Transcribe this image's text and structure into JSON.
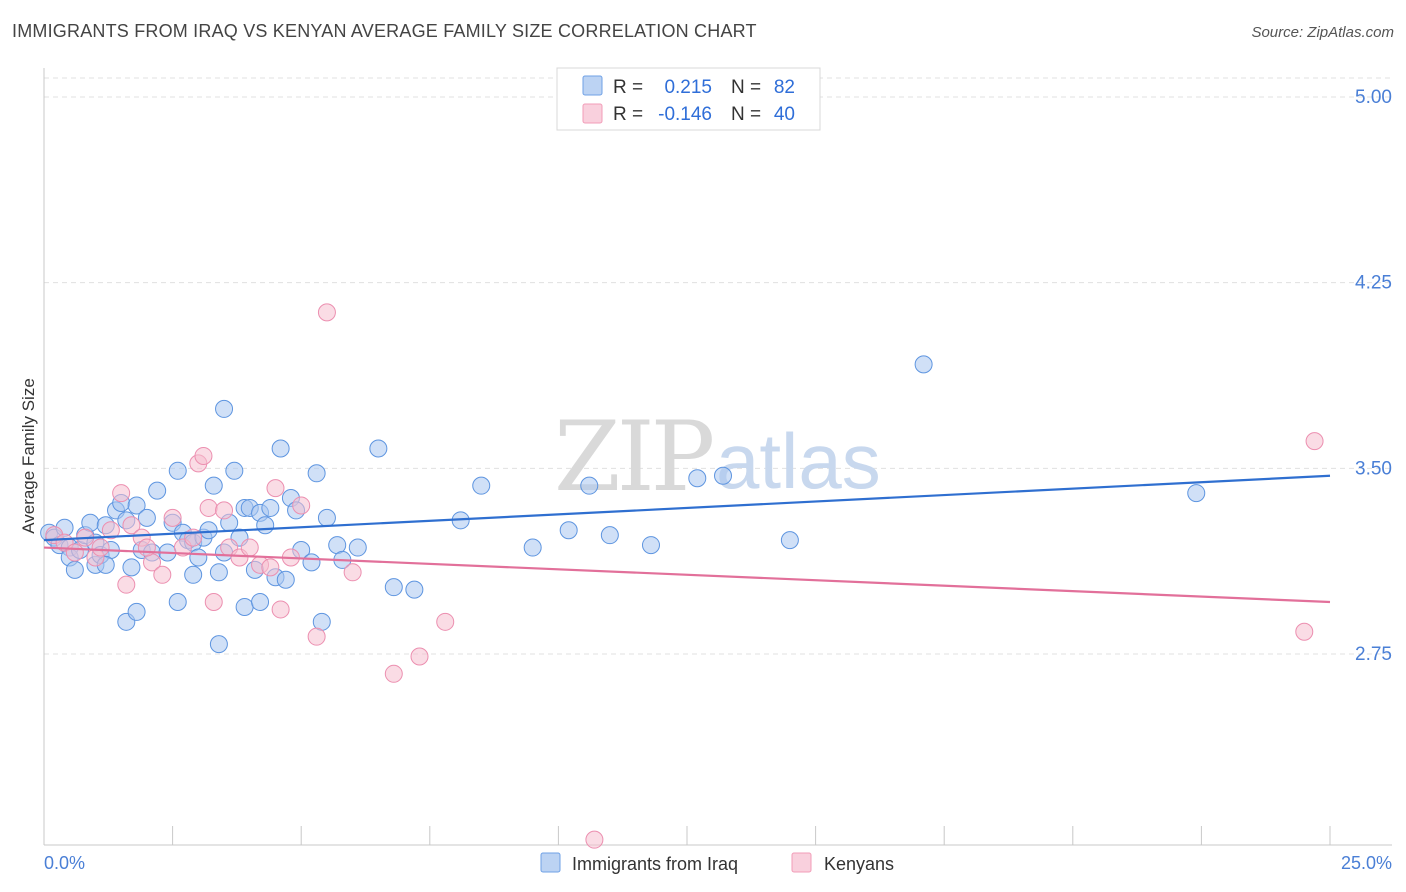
{
  "title": "IMMIGRANTS FROM IRAQ VS KENYAN AVERAGE FAMILY SIZE CORRELATION CHART",
  "source": "Source: ZipAtlas.com",
  "watermark": {
    "zip": "ZIP",
    "atlas": "atlas"
  },
  "legend": {
    "rows": [
      {
        "r_label": "R =",
        "r_value": "0.215",
        "n_label": "N =",
        "n_value": "82",
        "color": "#6fa1e6"
      },
      {
        "r_label": "R =",
        "r_value": "-0.146",
        "n_label": "N =",
        "n_value": "40",
        "color": "#f29cb8"
      }
    ]
  },
  "colors": {
    "blue_fill": "#a9c6f0",
    "blue_stroke": "#5e95e0",
    "blue_line": "#2f6fd0",
    "pink_fill": "#f6bfd0",
    "pink_stroke": "#ec8fb0",
    "pink_line": "#e2709a",
    "axis_text": "#4a7fd6",
    "grid": "#e0e0e0"
  },
  "chart_data": {
    "type": "scatter",
    "title": "IMMIGRANTS FROM IRAQ VS KENYAN AVERAGE FAMILY SIZE CORRELATION CHART",
    "xlabel": "",
    "ylabel": "Average Family Size",
    "xlim": [
      0,
      25
    ],
    "ylim": [
      2.0,
      5.1
    ],
    "x_tick_labels": [
      "0.0%",
      "25.0%"
    ],
    "y_ticks": [
      2.75,
      3.5,
      4.25,
      5.0
    ],
    "y_tick_labels": [
      "2.75",
      "3.50",
      "4.25",
      "5.00"
    ],
    "grid": true,
    "series": [
      {
        "name": "Immigrants from Iraq",
        "color": "#6fa1e6",
        "trend": {
          "x": [
            0,
            25
          ],
          "y": [
            3.21,
            3.47
          ]
        },
        "points": [
          [
            0.1,
            3.24
          ],
          [
            0.2,
            3.22
          ],
          [
            0.3,
            3.19
          ],
          [
            0.4,
            3.26
          ],
          [
            0.5,
            3.18
          ],
          [
            0.5,
            3.14
          ],
          [
            0.6,
            3.09
          ],
          [
            0.7,
            3.17
          ],
          [
            0.8,
            3.23
          ],
          [
            0.9,
            3.28
          ],
          [
            1.0,
            3.2
          ],
          [
            1.0,
            3.11
          ],
          [
            1.1,
            3.15
          ],
          [
            1.2,
            3.27
          ],
          [
            1.3,
            3.17
          ],
          [
            1.4,
            3.33
          ],
          [
            1.5,
            3.36
          ],
          [
            1.6,
            3.29
          ],
          [
            1.7,
            3.1
          ],
          [
            1.8,
            3.35
          ],
          [
            1.9,
            3.17
          ],
          [
            2.0,
            3.3
          ],
          [
            2.1,
            3.16
          ],
          [
            2.2,
            3.41
          ],
          [
            2.4,
            3.16
          ],
          [
            2.5,
            3.28
          ],
          [
            2.6,
            3.49
          ],
          [
            2.7,
            3.24
          ],
          [
            2.8,
            3.21
          ],
          [
            2.9,
            3.2
          ],
          [
            3.0,
            3.14
          ],
          [
            3.1,
            3.22
          ],
          [
            3.2,
            3.25
          ],
          [
            3.3,
            3.43
          ],
          [
            3.4,
            3.08
          ],
          [
            3.5,
            3.16
          ],
          [
            3.6,
            3.28
          ],
          [
            3.7,
            3.49
          ],
          [
            3.8,
            3.22
          ],
          [
            3.9,
            3.34
          ],
          [
            4.0,
            3.34
          ],
          [
            4.1,
            3.09
          ],
          [
            4.2,
            3.32
          ],
          [
            4.3,
            3.27
          ],
          [
            4.4,
            3.34
          ],
          [
            4.5,
            3.06
          ],
          [
            4.6,
            3.58
          ],
          [
            4.7,
            3.05
          ],
          [
            4.8,
            3.38
          ],
          [
            4.9,
            3.33
          ],
          [
            5.0,
            3.17
          ],
          [
            5.2,
            3.12
          ],
          [
            5.3,
            3.48
          ],
          [
            5.5,
            3.3
          ],
          [
            5.7,
            3.19
          ],
          [
            5.8,
            3.13
          ],
          [
            6.1,
            3.18
          ],
          [
            6.5,
            3.58
          ],
          [
            6.8,
            3.02
          ],
          [
            7.2,
            3.01
          ],
          [
            8.1,
            3.29
          ],
          [
            8.5,
            3.43
          ],
          [
            9.5,
            3.18
          ],
          [
            10.2,
            3.25
          ],
          [
            10.6,
            3.43
          ],
          [
            11.0,
            3.23
          ],
          [
            11.8,
            3.19
          ],
          [
            12.7,
            3.46
          ],
          [
            13.2,
            3.47
          ],
          [
            14.5,
            3.21
          ],
          [
            17.1,
            3.92
          ],
          [
            22.4,
            3.4
          ],
          [
            1.6,
            2.88
          ],
          [
            1.8,
            2.92
          ],
          [
            2.6,
            2.96
          ],
          [
            3.4,
            2.79
          ],
          [
            3.9,
            2.94
          ],
          [
            4.2,
            2.96
          ],
          [
            5.4,
            2.88
          ],
          [
            3.5,
            3.74
          ],
          [
            2.9,
            3.07
          ],
          [
            1.2,
            3.11
          ]
        ]
      },
      {
        "name": "Kenyans",
        "color": "#f29cb8",
        "trend": {
          "x": [
            0,
            25
          ],
          "y": [
            3.18,
            2.96
          ]
        },
        "points": [
          [
            0.2,
            3.23
          ],
          [
            0.4,
            3.2
          ],
          [
            0.6,
            3.16
          ],
          [
            0.8,
            3.22
          ],
          [
            1.0,
            3.14
          ],
          [
            1.1,
            3.18
          ],
          [
            1.3,
            3.25
          ],
          [
            1.5,
            3.4
          ],
          [
            1.7,
            3.27
          ],
          [
            1.9,
            3.22
          ],
          [
            2.1,
            3.12
          ],
          [
            2.3,
            3.07
          ],
          [
            2.5,
            3.3
          ],
          [
            2.7,
            3.18
          ],
          [
            2.9,
            3.22
          ],
          [
            3.0,
            3.52
          ],
          [
            3.2,
            3.34
          ],
          [
            3.3,
            2.96
          ],
          [
            3.5,
            3.33
          ],
          [
            3.6,
            3.18
          ],
          [
            3.8,
            3.14
          ],
          [
            4.0,
            3.18
          ],
          [
            4.2,
            3.11
          ],
          [
            4.4,
            3.1
          ],
          [
            4.6,
            2.93
          ],
          [
            4.8,
            3.14
          ],
          [
            5.0,
            3.35
          ],
          [
            5.3,
            2.82
          ],
          [
            5.5,
            4.13
          ],
          [
            6.0,
            3.08
          ],
          [
            6.8,
            2.67
          ],
          [
            7.3,
            2.74
          ],
          [
            7.8,
            2.88
          ],
          [
            2.0,
            3.18
          ],
          [
            3.1,
            3.55
          ],
          [
            1.6,
            3.03
          ],
          [
            4.5,
            3.42
          ],
          [
            24.7,
            3.61
          ],
          [
            24.5,
            2.84
          ],
          [
            10.7,
            2.0
          ]
        ]
      }
    ]
  },
  "bottom_legend": [
    {
      "label": "Immigrants from Iraq",
      "color": "#a9c6f0"
    },
    {
      "label": "Kenyans",
      "color": "#f6bfd0"
    }
  ]
}
